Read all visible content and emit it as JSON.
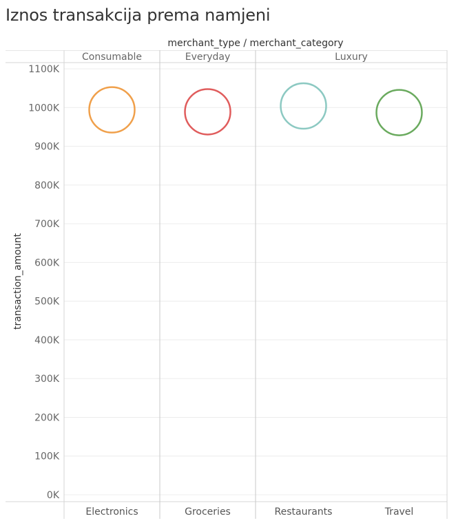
{
  "title": "Iznos transakcija prema namjeni",
  "chart_data": {
    "type": "scatter",
    "mark": "circle",
    "column_header_title": "merchant_type / merchant_category",
    "groups": [
      {
        "name": "Consumable",
        "categories": [
          "Electronics"
        ]
      },
      {
        "name": "Everyday",
        "categories": [
          "Groceries"
        ]
      },
      {
        "name": "Luxury",
        "categories": [
          "Restaurants",
          "Travel"
        ]
      }
    ],
    "categories": [
      "Electronics",
      "Groceries",
      "Restaurants",
      "Travel"
    ],
    "values": [
      994000,
      989000,
      1004000,
      987000
    ],
    "colors": [
      "#f0a04b",
      "#e05c5c",
      "#8cc9c2",
      "#6aaa5e"
    ],
    "ylabel": "transaction_amount",
    "ylim": [
      0,
      1100000
    ],
    "yticks": [
      0,
      100000,
      200000,
      300000,
      400000,
      500000,
      600000,
      700000,
      800000,
      900000,
      1000000,
      1100000
    ],
    "ytick_labels": [
      "0K",
      "100K",
      "200K",
      "300K",
      "400K",
      "500K",
      "600K",
      "700K",
      "800K",
      "900K",
      "1000K",
      "1100K"
    ],
    "grid": true,
    "legend": "none"
  }
}
